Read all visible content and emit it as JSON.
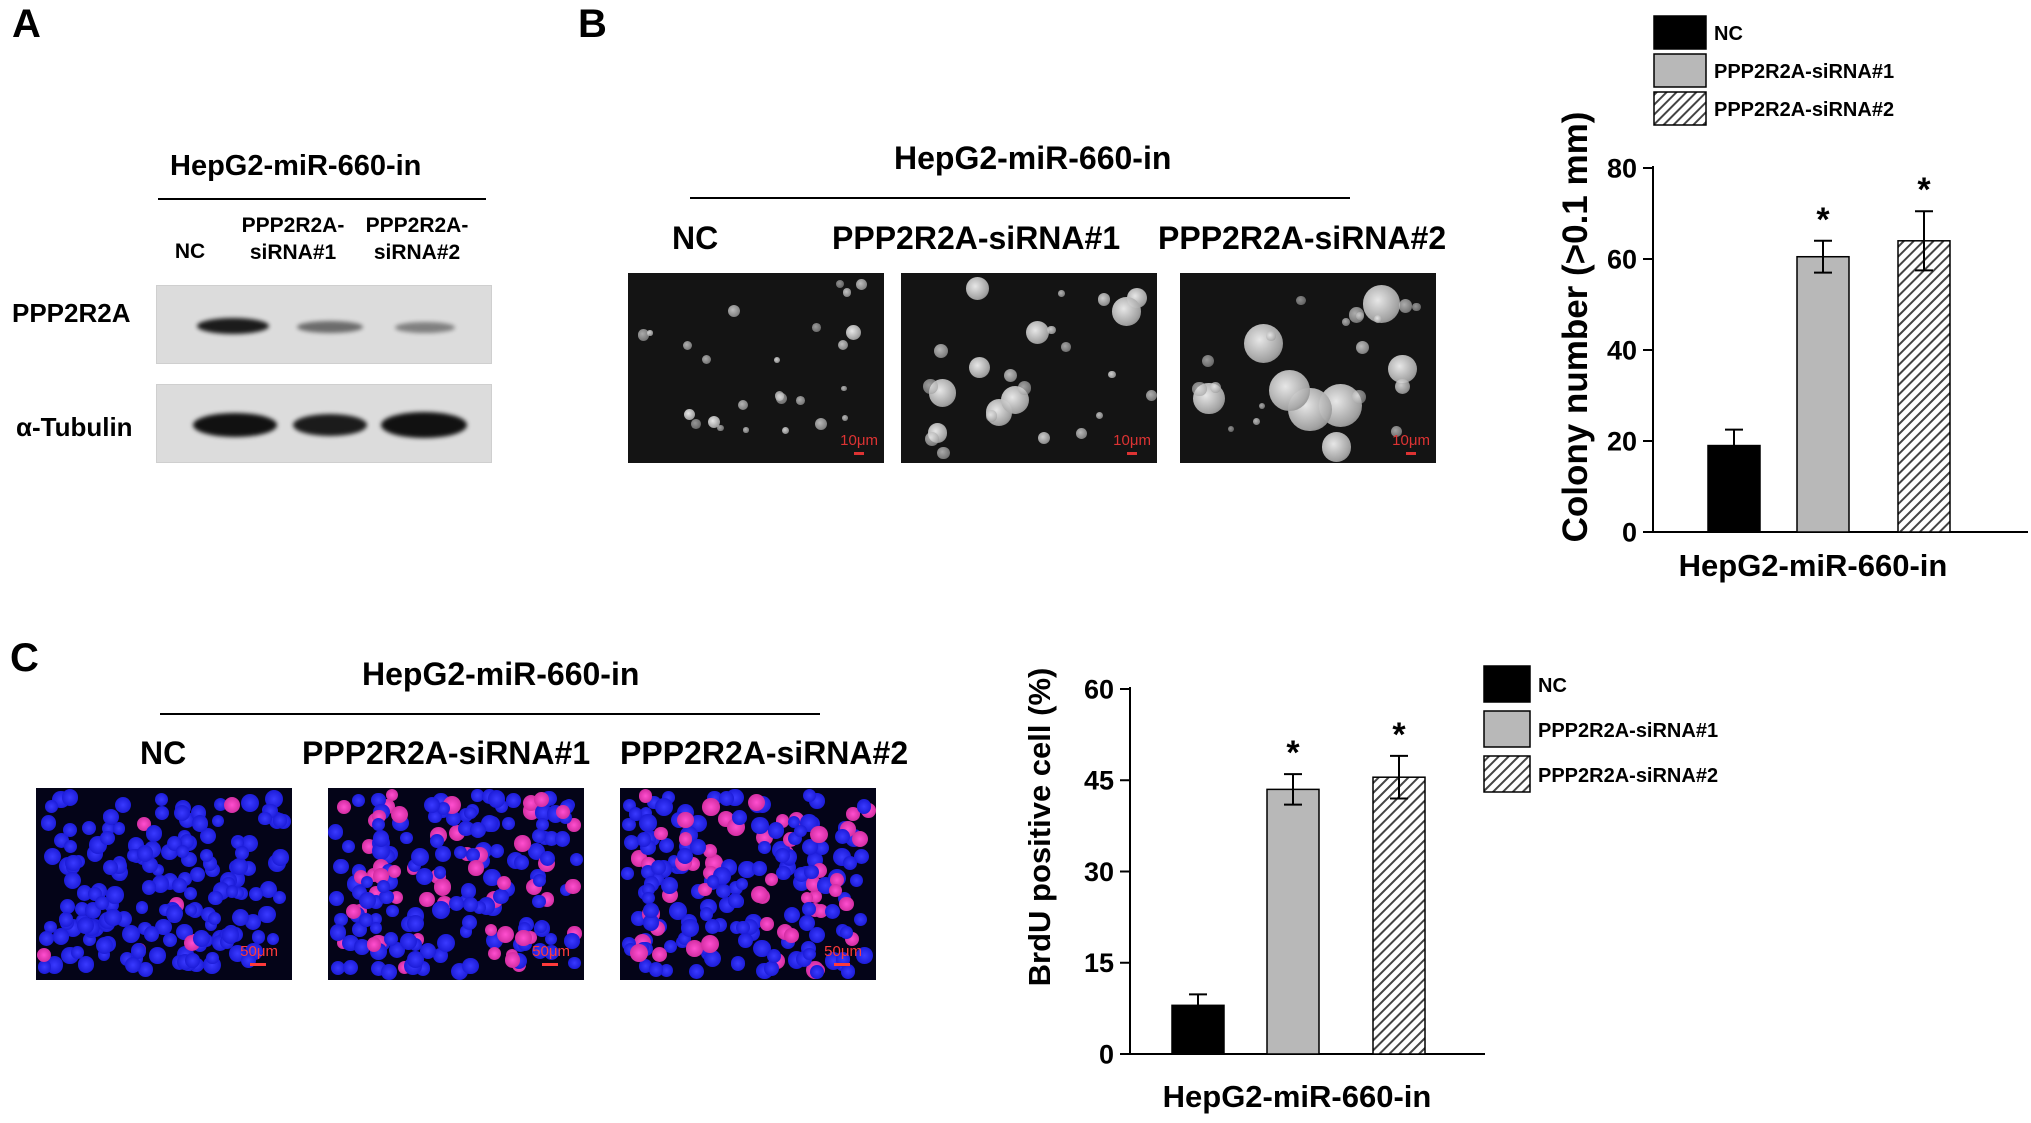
{
  "panels": {
    "a": {
      "letter": "A",
      "header": "HepG2-miR-660-in",
      "lanes": [
        "NC",
        "PPP2R2A-siRNA#1",
        "PPP2R2A-siRNA#2"
      ],
      "lane_lines": [
        [
          "NC"
        ],
        [
          "PPP2R2A-",
          "siRNA#1"
        ],
        [
          "PPP2R2A-",
          "siRNA#2"
        ]
      ],
      "rows": [
        {
          "label": "PPP2R2A",
          "intensity": [
            0.95,
            0.55,
            0.45
          ]
        },
        {
          "label": "α-Tubulin",
          "intensity": [
            1.0,
            0.95,
            1.0
          ]
        }
      ]
    },
    "b": {
      "letter": "B",
      "header": "HepG2-miR-660-in",
      "groups": [
        "NC",
        "PPP2R2A-siRNA#1",
        "PPP2R2A-siRNA#2"
      ],
      "scale_bar": "10μm"
    },
    "c": {
      "letter": "C",
      "header": "HepG2-miR-660-in",
      "groups": [
        "NC",
        "PPP2R2A-siRNA#1",
        "PPP2R2A-siRNA#2"
      ],
      "scale_bar": "50μm"
    }
  },
  "chart_data": [
    {
      "type": "bar",
      "categories": [
        "NC",
        "PPP2R2A-siRNA#1",
        "PPP2R2A-siRNA#2"
      ],
      "values": [
        19,
        60.5,
        64
      ],
      "errors": [
        3.5,
        3.5,
        6.5
      ],
      "significance": [
        "",
        "*",
        "*"
      ],
      "xlabel": "HepG2-miR-660-in",
      "ylabel": "Colony number (>0.1 mm)",
      "ylim": [
        0,
        80
      ],
      "yticks": [
        0,
        20,
        40,
        60,
        80
      ],
      "legend": [
        "NC",
        "PPP2R2A-siRNA#1",
        "PPP2R2A-siRNA#2"
      ],
      "legend_position": "top",
      "fills": [
        "#000000",
        "#b8b8b8",
        "hatch"
      ]
    },
    {
      "type": "bar",
      "categories": [
        "NC",
        "PPP2R2A-siRNA#1",
        "PPP2R2A-siRNA#2"
      ],
      "values": [
        8,
        43.5,
        45.5
      ],
      "errors": [
        1.8,
        2.5,
        3.5
      ],
      "significance": [
        "",
        "*",
        "*"
      ],
      "xlabel": "HepG2-miR-660-in",
      "ylabel": "BrdU positive cell (%)",
      "ylim": [
        0,
        60
      ],
      "yticks": [
        0,
        15,
        30,
        45,
        60
      ],
      "legend": [
        "NC",
        "PPP2R2A-siRNA#1",
        "PPP2R2A-siRNA#2"
      ],
      "legend_position": "right",
      "fills": [
        "#000000",
        "#b8b8b8",
        "hatch"
      ]
    }
  ]
}
